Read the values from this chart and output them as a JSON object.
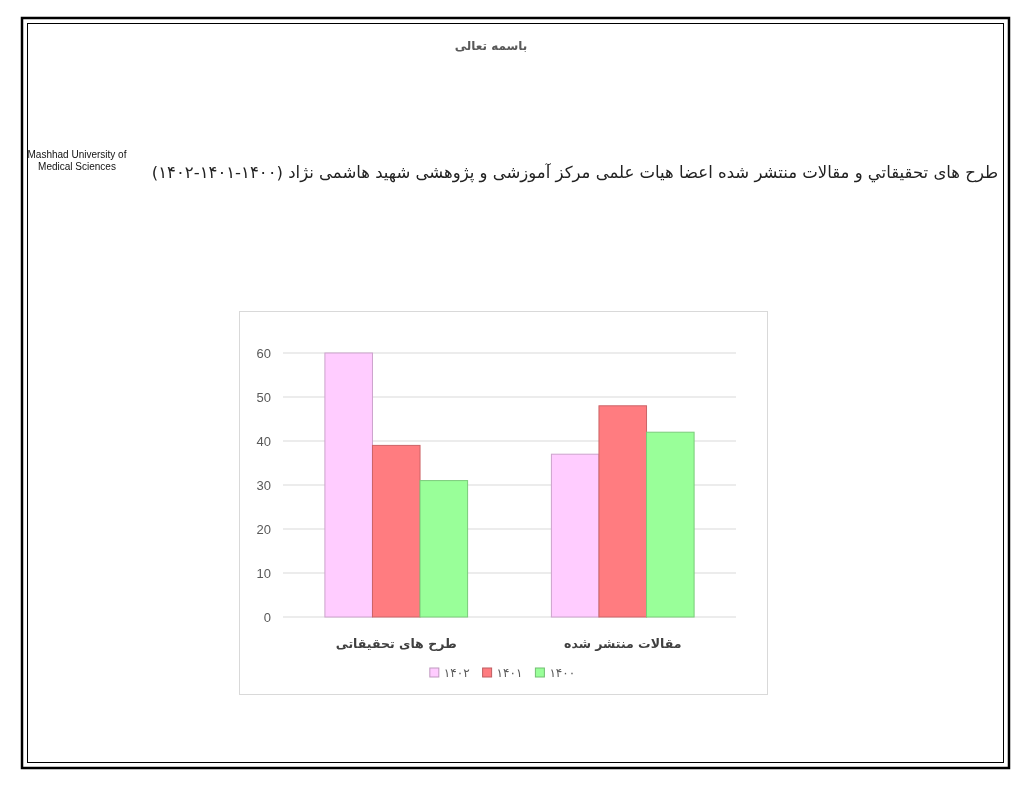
{
  "chart_data": {
    "type": "bar",
    "title": "طرح های تحقیقاتي و مقالات منتشر شده اعضا هیات علمی مرکز آموزشی و پژوهشی شهید هاشمی نژاد (۱۴۰۰-۱۴۰۱-۱۴۰۲)",
    "annotations": [
      "باسمه تعالی",
      "Mashhad University of Medical Sciences"
    ],
    "categories": [
      "طرح های تحقیقاتی",
      "مقالات منتشر شده"
    ],
    "series": [
      {
        "name": "۱۴۰۲",
        "color": "#ffccff",
        "values": [
          60,
          37
        ]
      },
      {
        "name": "۱۴۰۱",
        "color": "#ff7c80",
        "values": [
          39,
          48
        ]
      },
      {
        "name": "۱۴۰۰",
        "color": "#99ff99",
        "values": [
          31,
          42
        ]
      }
    ],
    "ylim": [
      0,
      60
    ],
    "yticks": [
      0,
      10,
      20,
      30,
      40,
      50,
      60
    ],
    "grid": "y",
    "legend": "bottom"
  }
}
